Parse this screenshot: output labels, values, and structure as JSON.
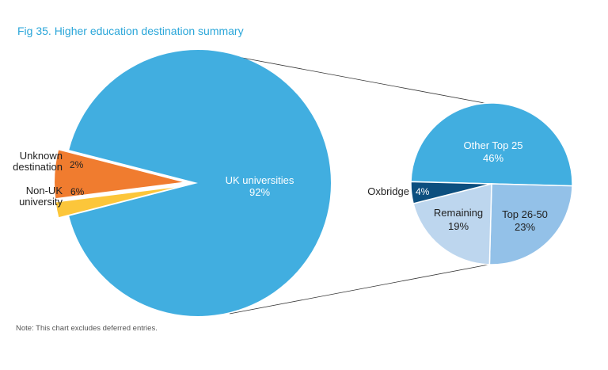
{
  "title": "Fig 35. Higher education destination summary",
  "note": "Note: This chart excludes deferred entries.",
  "colors": {
    "title": "#2aa6d9",
    "uk": "#41aee0",
    "unknown": "#fcc63a",
    "non_uk": "#f07c2f",
    "other_top25": "#41aee0",
    "top26_50": "#93c1e8",
    "remaining": "#bdd6ee",
    "oxbridge": "#0c4f7f"
  },
  "chart_data": [
    {
      "type": "pie",
      "title": "",
      "slices": [
        {
          "label": "UK universities",
          "value": 92,
          "value_label": "92%",
          "color": "#41aee0"
        },
        {
          "label": "Unknown destination",
          "label_lines": [
            "Unknown",
            "destination"
          ],
          "value": 2,
          "value_label": "2%",
          "color": "#fcc63a",
          "exploded": true
        },
        {
          "label": "Non-UK university",
          "label_lines": [
            "Non-UK",
            "university"
          ],
          "value": 6,
          "value_label": "6%",
          "color": "#f07c2f",
          "exploded": true
        }
      ]
    },
    {
      "type": "pie",
      "title": "",
      "breakdown_of": "UK universities",
      "slices": [
        {
          "label": "Other Top 25",
          "value": 46,
          "value_label": "46%",
          "color": "#41aee0"
        },
        {
          "label": "Top 26-50",
          "value": 23,
          "value_label": "23%",
          "color": "#93c1e8"
        },
        {
          "label": "Remaining",
          "value": 19,
          "value_label": "19%",
          "color": "#bdd6ee"
        },
        {
          "label": "Oxbridge",
          "value": 4,
          "value_label": "4%",
          "color": "#0c4f7f"
        }
      ]
    }
  ]
}
